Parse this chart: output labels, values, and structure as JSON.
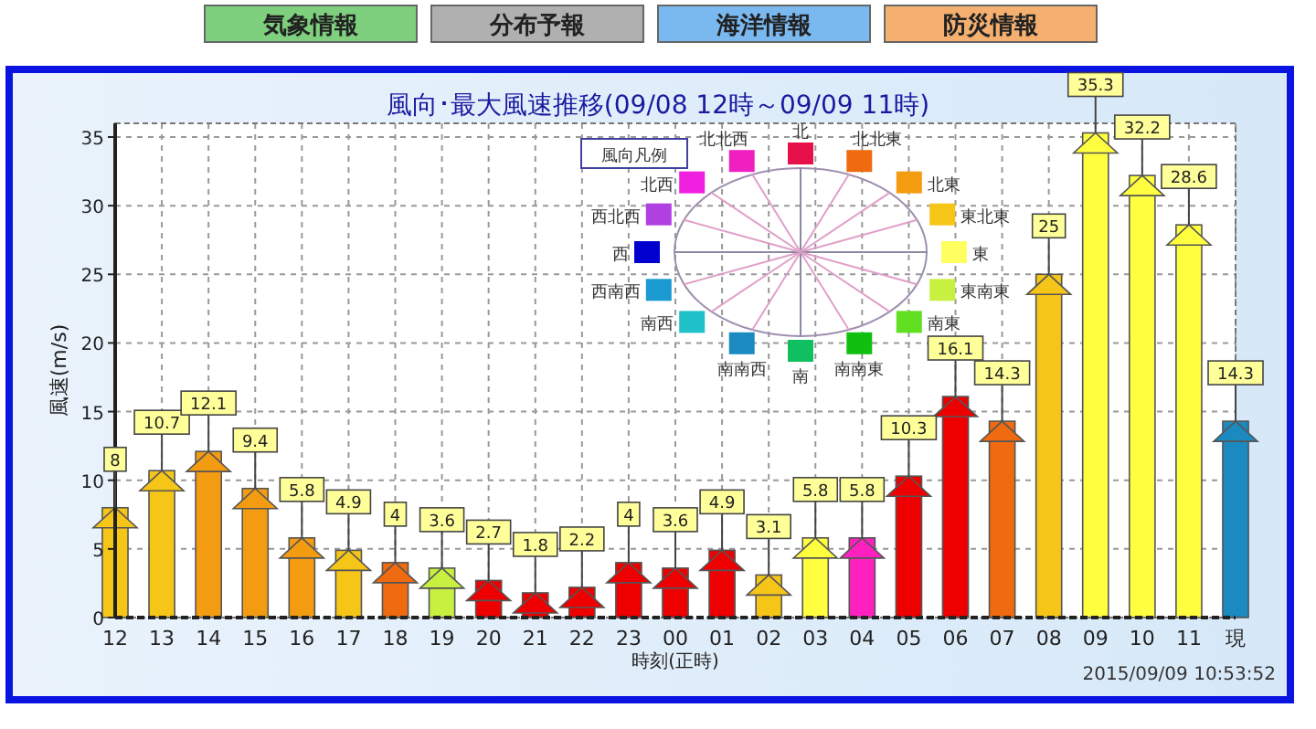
{
  "chart_data": {
    "type": "bar",
    "title": "風向･最大風速推移(09/08 12時～09/09 11時)",
    "xlabel": "時刻(正時)",
    "ylabel": "風速(m/s)",
    "legend_title": "風向凡例",
    "categories": [
      "12",
      "13",
      "14",
      "15",
      "16",
      "17",
      "18",
      "19",
      "20",
      "21",
      "22",
      "23",
      "00",
      "01",
      "02",
      "03",
      "04",
      "05",
      "06",
      "07",
      "08",
      "09",
      "10",
      "11",
      "現"
    ],
    "values": [
      8,
      10.7,
      12.1,
      9.4,
      5.8,
      4.9,
      4,
      3.6,
      2.7,
      1.8,
      2.2,
      4,
      3.6,
      4.9,
      3.1,
      5.8,
      5.8,
      10.3,
      16.1,
      14.3,
      25,
      35.3,
      32.2,
      28.6,
      14.3
    ],
    "colors": [
      "#f5c518",
      "#f5c518",
      "#f39c12",
      "#f39c12",
      "#f39c12",
      "#f5c518",
      "#f06a10",
      "#c8f040",
      "#ee0000",
      "#ee0000",
      "#ee0000",
      "#ee0000",
      "#ee0000",
      "#ee0000",
      "#f5c518",
      "#ffff40",
      "#ff20c0",
      "#ee0000",
      "#ee0000",
      "#f06a10",
      "#f5c518",
      "#ffff40",
      "#ffff40",
      "#ffff40",
      "#1a8ac0"
    ],
    "ylim": [
      0,
      36
    ],
    "yticks": [
      0,
      5,
      10,
      15,
      20,
      25,
      30,
      35
    ],
    "grid": true,
    "data_labels": true,
    "annotations": [
      "気象情報",
      "分布予報",
      "海洋情報",
      "防災情報",
      "北",
      "北北東",
      "北東",
      "東北東",
      "東",
      "東南東",
      "南東",
      "南南東",
      "南",
      "南南西",
      "南西",
      "西南西",
      "西",
      "西北西",
      "北西",
      "北北西",
      "2015/09/09 10:53:52"
    ]
  }
}
